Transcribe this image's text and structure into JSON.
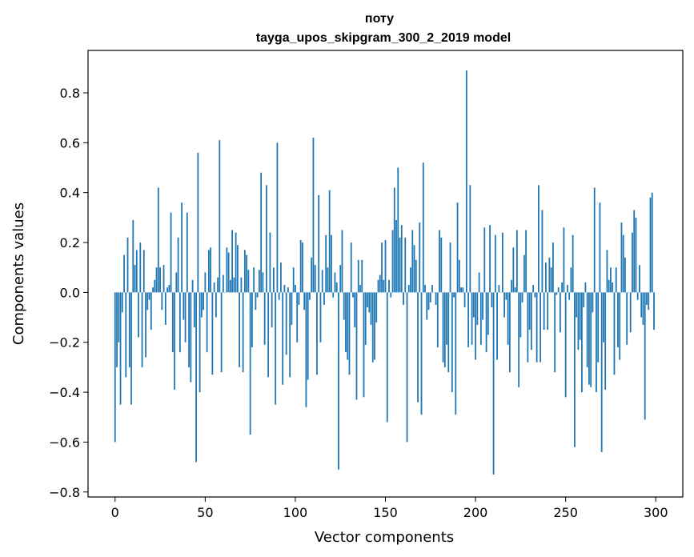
{
  "chart_data": {
    "type": "bar",
    "title_line1": "поту",
    "title_line2": "tayga_upos_skipgram_300_2_2019 model",
    "xlabel": "Vector components",
    "ylabel": "Components values",
    "xlim": [
      -15,
      315
    ],
    "ylim": [
      -0.82,
      0.97
    ],
    "xticks": [
      0,
      50,
      100,
      150,
      200,
      250,
      300
    ],
    "xtick_labels": [
      "0",
      "50",
      "100",
      "150",
      "200",
      "250",
      "300"
    ],
    "yticks": [
      -0.8,
      -0.6,
      -0.4,
      -0.2,
      0.0,
      0.2,
      0.4,
      0.6,
      0.8
    ],
    "ytick_labels": [
      "−0.8",
      "−0.6",
      "−0.4",
      "−0.2",
      "0.0",
      "0.2",
      "0.4",
      "0.6",
      "0.8"
    ],
    "bar_color": "#1f77b4",
    "values": [
      -0.6,
      -0.3,
      -0.2,
      -0.45,
      -0.08,
      0.15,
      -0.34,
      0.22,
      -0.3,
      -0.45,
      0.29,
      0.11,
      0.17,
      -0.18,
      0.2,
      -0.3,
      0.17,
      -0.26,
      -0.07,
      -0.03,
      -0.15,
      0.02,
      0.05,
      0.1,
      0.42,
      0.1,
      -0.07,
      0.11,
      -0.13,
      0.02,
      0.03,
      0.32,
      -0.24,
      -0.39,
      0.08,
      0.22,
      -0.24,
      0.36,
      -0.11,
      -0.2,
      0.32,
      -0.3,
      -0.36,
      0.05,
      -0.14,
      -0.68,
      0.56,
      -0.4,
      -0.1,
      -0.07,
      0.08,
      -0.24,
      0.17,
      0.18,
      -0.33,
      0.04,
      -0.1,
      0.06,
      0.61,
      -0.32,
      0.07,
      0.0,
      0.18,
      0.16,
      0.05,
      0.25,
      0.06,
      0.24,
      0.19,
      -0.3,
      0.06,
      -0.32,
      0.17,
      0.15,
      0.09,
      -0.57,
      -0.22,
      0.1,
      -0.07,
      -0.02,
      0.09,
      0.48,
      0.08,
      -0.21,
      0.43,
      -0.34,
      0.24,
      -0.14,
      0.1,
      -0.45,
      0.6,
      -0.03,
      0.12,
      -0.37,
      0.03,
      -0.25,
      0.02,
      -0.34,
      -0.13,
      0.1,
      0.03,
      -0.2,
      -0.05,
      0.21,
      0.2,
      -0.07,
      -0.46,
      -0.35,
      -0.03,
      0.14,
      0.62,
      0.11,
      -0.33,
      0.39,
      -0.2,
      0.09,
      -0.05,
      0.23,
      0.1,
      0.41,
      0.23,
      -0.02,
      0.08,
      0.04,
      -0.71,
      0.11,
      0.25,
      -0.11,
      -0.24,
      -0.27,
      -0.33,
      0.2,
      -0.02,
      -0.14,
      -0.43,
      0.13,
      0.03,
      0.13,
      -0.42,
      -0.21,
      -0.06,
      -0.08,
      -0.13,
      -0.28,
      -0.27,
      -0.12,
      0.05,
      0.07,
      0.2,
      0.05,
      0.21,
      -0.52,
      0.05,
      -0.02,
      0.25,
      0.42,
      0.29,
      0.5,
      0.22,
      0.27,
      -0.05,
      0.22,
      -0.6,
      0.03,
      0.1,
      0.25,
      0.19,
      0.13,
      -0.44,
      0.28,
      -0.49,
      0.52,
      0.03,
      -0.11,
      -0.07,
      -0.04,
      0.03,
      0.0,
      -0.05,
      -0.22,
      0.25,
      0.22,
      -0.28,
      -0.3,
      -0.21,
      -0.32,
      0.2,
      -0.4,
      -0.02,
      -0.49,
      0.36,
      0.13,
      0.02,
      0.02,
      -0.06,
      0.89,
      -0.22,
      0.43,
      -0.21,
      -0.1,
      -0.27,
      -0.13,
      0.08,
      -0.21,
      -0.11,
      0.26,
      -0.24,
      -0.17,
      0.27,
      -0.06,
      -0.73,
      0.23,
      -0.27,
      0.03,
      0.0,
      0.24,
      -0.1,
      -0.03,
      -0.21,
      -0.32,
      0.05,
      0.18,
      0.02,
      0.25,
      -0.38,
      -0.18,
      -0.04,
      0.15,
      0.25,
      -0.28,
      -0.15,
      -0.23,
      0.03,
      -0.02,
      -0.28,
      0.43,
      -0.28,
      0.33,
      -0.15,
      0.12,
      -0.15,
      0.14,
      0.1,
      0.2,
      -0.32,
      -0.01,
      0.02,
      -0.16,
      0.04,
      0.26,
      -0.42,
      0.03,
      -0.03,
      0.1,
      0.23,
      -0.62,
      -0.1,
      -0.23,
      -0.19,
      -0.4,
      -0.06,
      0.04,
      -0.3,
      -0.37,
      -0.38,
      -0.08,
      0.42,
      -0.4,
      -0.28,
      0.36,
      -0.64,
      -0.2,
      -0.39,
      0.17,
      0.05,
      0.1,
      0.04,
      -0.33,
      0.1,
      -0.22,
      -0.27,
      0.28,
      0.23,
      0.14,
      -0.21,
      0.0,
      -0.16,
      0.24,
      0.33,
      0.3,
      -0.03,
      0.11,
      -0.1,
      -0.13,
      -0.51,
      -0.05,
      -0.07,
      0.38,
      0.4,
      -0.15
    ]
  }
}
